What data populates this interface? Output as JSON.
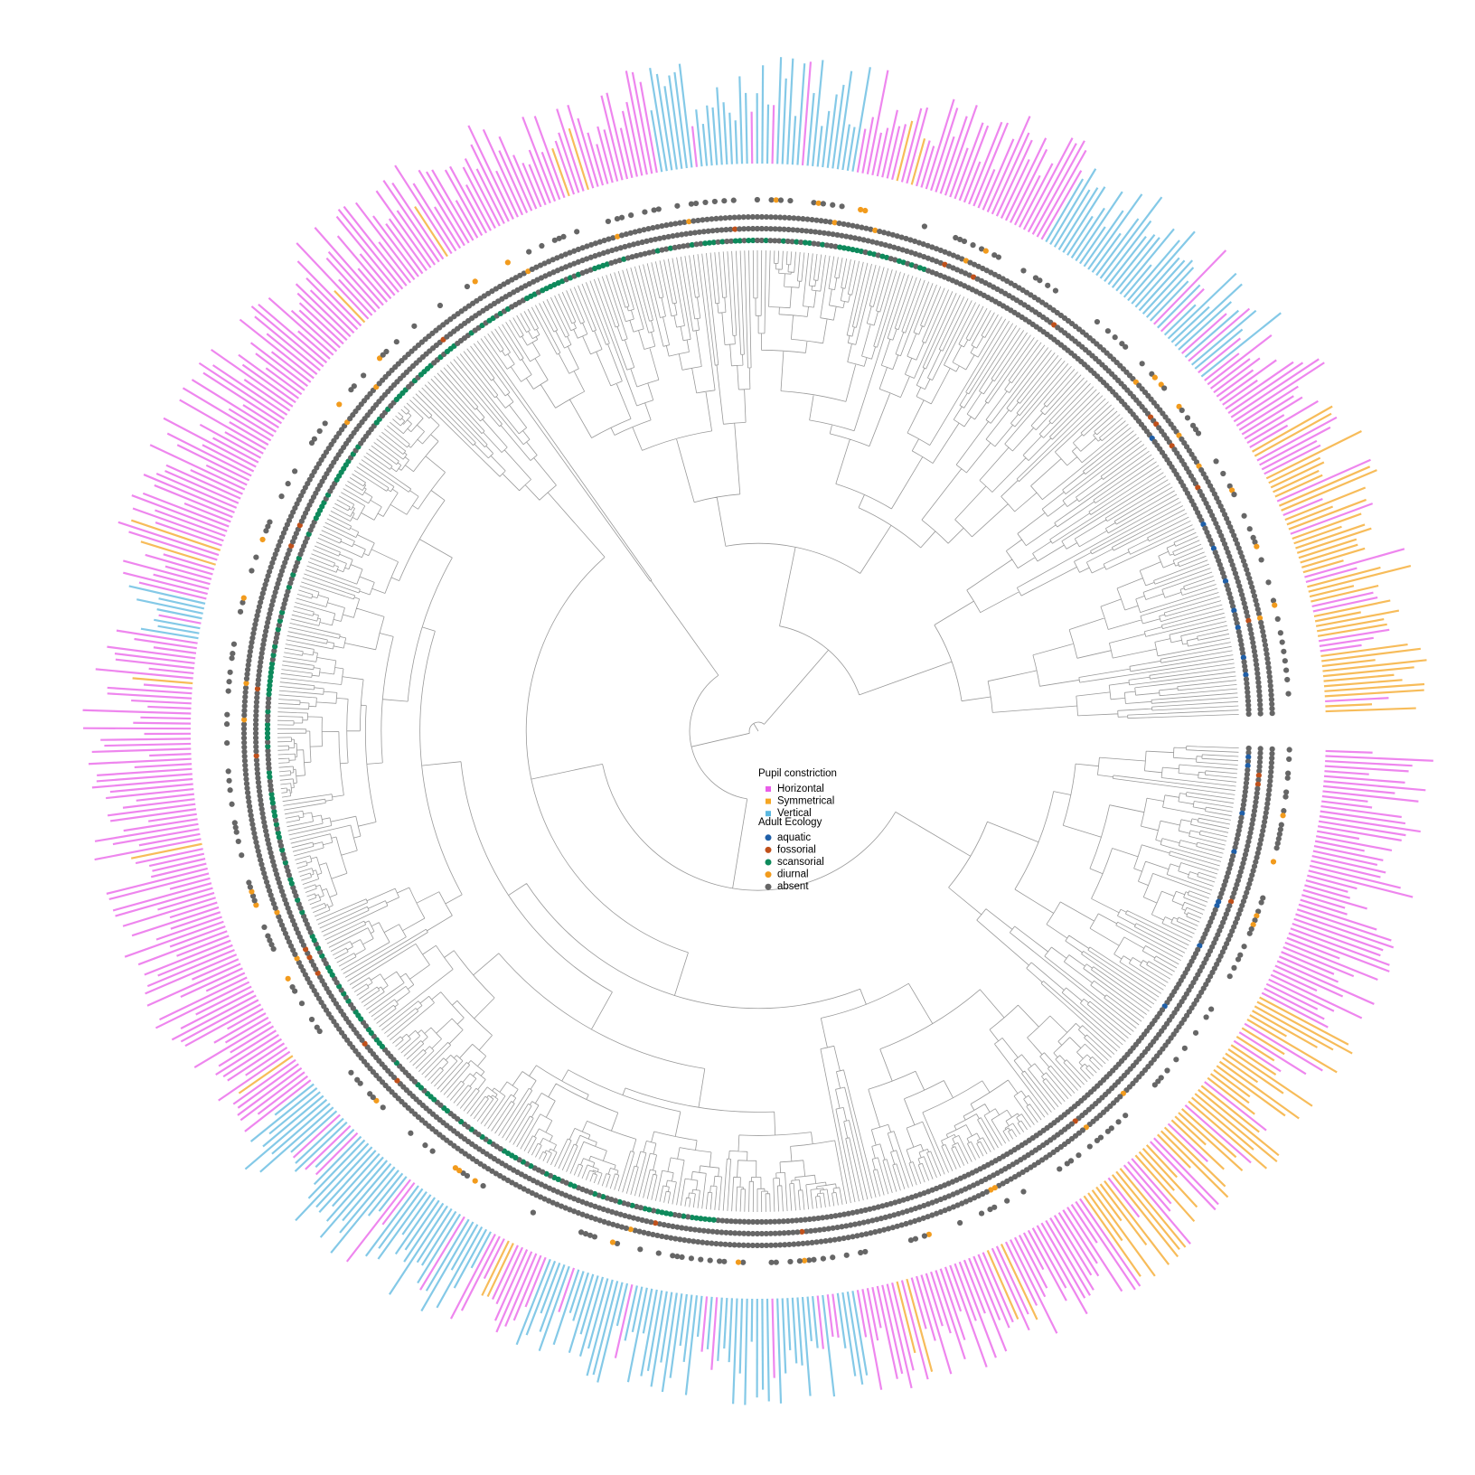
{
  "legends": [
    {
      "title": "Pupil constriction",
      "items": [
        {
          "label": "Horizontal",
          "color": "#e95ee9"
        },
        {
          "label": "Symmetrical",
          "color": "#f5a623"
        },
        {
          "label": "Vertical",
          "color": "#5bb8e0"
        }
      ]
    },
    {
      "title": "Adult Ecology",
      "items": [
        {
          "label": "aquatic",
          "color": "#1f5fa8"
        },
        {
          "label": "fossorial",
          "color": "#c0501a"
        },
        {
          "label": "scansorial",
          "color": "#0e8a5c"
        },
        {
          "label": "diurnal",
          "color": "#f29b1d"
        },
        {
          "label": "absent",
          "color": "#666666"
        }
      ]
    }
  ]
}
